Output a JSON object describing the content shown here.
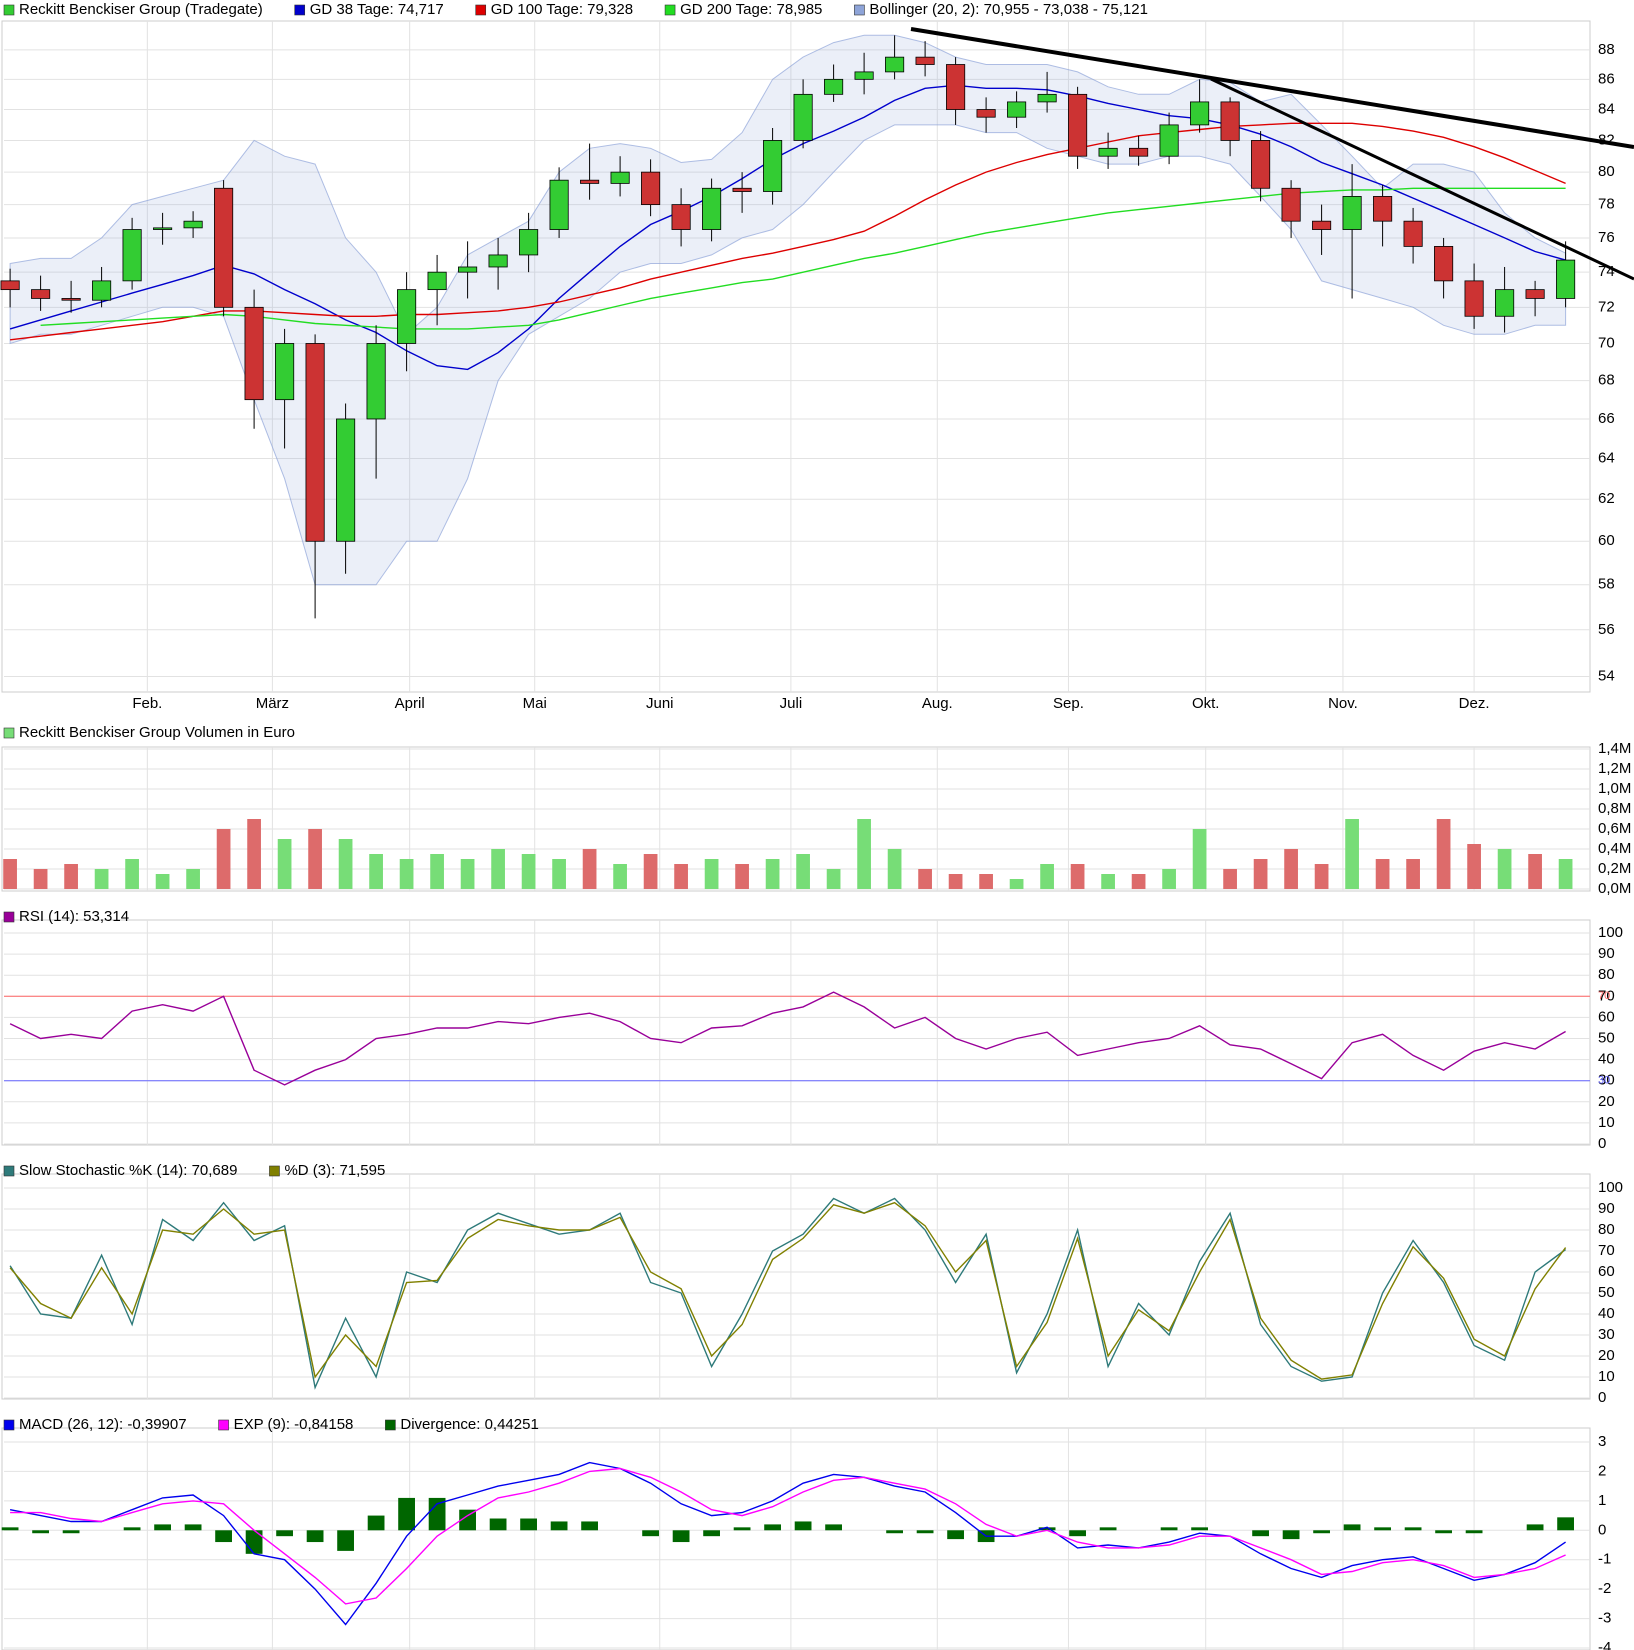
{
  "chart_data": [
    {
      "type": "candlestick",
      "log": true,
      "ylim": [
        53.35,
        90
      ],
      "yticks": [
        54,
        56,
        58,
        60,
        62,
        64,
        66,
        68,
        70,
        72,
        74,
        76,
        78,
        80,
        82,
        84,
        86,
        88
      ],
      "grid": true,
      "xlim": [
        -0.2,
        51.8
      ],
      "xticks": [
        {
          "value": 4.5,
          "label": "Feb."
        },
        {
          "value": 8.6,
          "label": "März"
        },
        {
          "value": 13.1,
          "label": "April"
        },
        {
          "value": 17.2,
          "label": "Mai"
        },
        {
          "value": 21.3,
          "label": "Juni"
        },
        {
          "value": 25.6,
          "label": "Juli"
        },
        {
          "value": 30.4,
          "label": "Aug."
        },
        {
          "value": 34.7,
          "label": "Sep."
        },
        {
          "value": 39.2,
          "label": "Okt."
        },
        {
          "value": 43.7,
          "label": "Nov."
        },
        {
          "value": 48.0,
          "label": "Dez."
        }
      ],
      "series": [
        {
          "type": "candlestick",
          "name": "Reckitt Benckiser Group (Tradegate)",
          "color": "#33cc33",
          "down_color": "#cc3333",
          "open": [
            73.5,
            73,
            72.5,
            72.4,
            73.5,
            76.5,
            76.6,
            79,
            72,
            67,
            70,
            60,
            66,
            70,
            73,
            74,
            74.3,
            75,
            76.5,
            79.5,
            79.3,
            80,
            78,
            76.5,
            79,
            78.8,
            82,
            85,
            86,
            86.5,
            87.5,
            87,
            84,
            83.5,
            84.5,
            85,
            81,
            81.5,
            81,
            83,
            84.5,
            82,
            79,
            77,
            76.5,
            78.5,
            77,
            75.5,
            73.5,
            71.5,
            73,
            72.5
          ],
          "high": [
            74.2,
            73.8,
            73.5,
            74.3,
            77.2,
            77.5,
            77.6,
            79.5,
            73,
            70.8,
            70.5,
            66.8,
            71,
            74,
            75,
            75.8,
            76,
            77.5,
            80.3,
            81.8,
            81,
            80.8,
            79,
            79.6,
            80,
            82.8,
            86,
            87,
            87.8,
            89,
            88.6,
            87.5,
            84.8,
            85.2,
            86.5,
            85.5,
            82.5,
            82.3,
            83.8,
            86,
            84.8,
            82.6,
            79.5,
            78,
            80.5,
            79.2,
            77.8,
            76,
            74.5,
            74.3,
            73.5,
            75.8
          ],
          "low": [
            72,
            71.8,
            71.7,
            72,
            73,
            75.6,
            76,
            71.5,
            65.5,
            64.5,
            56.5,
            58.5,
            63,
            68.5,
            71,
            72.5,
            73,
            74,
            76,
            78.3,
            78.5,
            77.3,
            75.5,
            75.8,
            77.5,
            78,
            81.5,
            84.5,
            85,
            86,
            86.2,
            83,
            82.5,
            82.8,
            83.8,
            80.2,
            80.2,
            80.4,
            80.5,
            82.5,
            81,
            78.2,
            76,
            75,
            72.5,
            75.5,
            74.5,
            72.5,
            70.8,
            70.6,
            71.5,
            72
          ],
          "close": [
            73,
            72.5,
            72.4,
            73.5,
            76.5,
            76.6,
            77,
            72,
            67,
            70,
            60,
            66,
            70,
            73,
            74,
            74.3,
            75,
            76.5,
            79.5,
            79.3,
            80,
            78,
            76.5,
            79,
            78.8,
            82,
            85,
            86,
            86.5,
            87.5,
            87,
            84,
            83.5,
            84.5,
            85,
            81,
            81.5,
            81,
            83,
            84.5,
            82,
            79,
            77,
            76.5,
            78.5,
            77,
            75.5,
            73.5,
            71.5,
            73,
            72.5,
            74.7
          ]
        },
        {
          "type": "line",
          "name": "GD 38 Tage: 74,717",
          "color": "#0000cc",
          "values": [
            70.8,
            71.3,
            71.8,
            72.3,
            72.8,
            73.3,
            73.8,
            74.4,
            73.9,
            73,
            72.2,
            71.3,
            70.6,
            69.6,
            68.8,
            68.6,
            69.5,
            70.8,
            72.5,
            74,
            75.5,
            76.8,
            77.6,
            78.5,
            79.6,
            80.8,
            81.8,
            82.6,
            83.5,
            84.6,
            85.4,
            85.6,
            85.4,
            85.4,
            85.3,
            84.9,
            84.4,
            84,
            83.6,
            83.4,
            83,
            82.4,
            81.6,
            80.6,
            79.9,
            79.2,
            78.4,
            77.6,
            76.8,
            76,
            75.2,
            74.7
          ]
        },
        {
          "type": "line",
          "name": "GD 100 Tage: 79,328",
          "color": "#dd0000",
          "values": [
            70.2,
            70.4,
            70.6,
            70.8,
            71,
            71.2,
            71.5,
            71.8,
            71.8,
            71.7,
            71.6,
            71.5,
            71.5,
            71.6,
            71.6,
            71.7,
            71.8,
            72,
            72.3,
            72.7,
            73.1,
            73.6,
            74,
            74.4,
            74.8,
            75.1,
            75.5,
            75.9,
            76.4,
            77.3,
            78.3,
            79.2,
            80,
            80.6,
            81.1,
            81.5,
            81.9,
            82.3,
            82.5,
            82.7,
            82.9,
            83,
            83.1,
            83.1,
            83.1,
            82.9,
            82.6,
            82.2,
            81.6,
            80.9,
            80.1,
            79.3
          ]
        },
        {
          "type": "line",
          "name": "GD 200 Tage: 78,985",
          "color": "#22dd22",
          "values": [
            null,
            71,
            71.1,
            71.2,
            71.3,
            71.4,
            71.5,
            71.6,
            71.5,
            71.3,
            71.1,
            71,
            70.9,
            70.8,
            70.8,
            70.8,
            70.9,
            71,
            71.3,
            71.7,
            72.1,
            72.5,
            72.8,
            73.1,
            73.4,
            73.6,
            74,
            74.4,
            74.8,
            75.1,
            75.5,
            75.9,
            76.3,
            76.6,
            76.9,
            77.2,
            77.5,
            77.7,
            77.9,
            78.1,
            78.3,
            78.5,
            78.7,
            78.8,
            78.9,
            78.9,
            79,
            79,
            79,
            79,
            79,
            79
          ]
        },
        {
          "type": "band",
          "name": "Bollinger (20, 2): 70,955 - 73,038 - 75,121",
          "color": "#8ea4d8",
          "upper": [
            74.5,
            74.8,
            74.8,
            76,
            78,
            78.5,
            79,
            79.5,
            82,
            81,
            80.5,
            76,
            74,
            70.5,
            72,
            75,
            76,
            77,
            80,
            81.5,
            81.8,
            81.5,
            80.6,
            80.8,
            82.5,
            86,
            87.5,
            88.5,
            89,
            89,
            88.5,
            87.5,
            87,
            87,
            87,
            86.5,
            85.5,
            85,
            85,
            86,
            85.8,
            84.5,
            85,
            83,
            81,
            79,
            80.5,
            80.5,
            80,
            77.5,
            76,
            75.1
          ],
          "lower": [
            70,
            70.5,
            70.5,
            71,
            71.5,
            72,
            72,
            71.5,
            67,
            63,
            58,
            58,
            58,
            60,
            60,
            63,
            68,
            70.5,
            71.5,
            72.5,
            74,
            74.5,
            74.5,
            75,
            76,
            76.5,
            78,
            80,
            82,
            83,
            83,
            83,
            82.5,
            82.5,
            81.5,
            81,
            80.5,
            80.5,
            81,
            81,
            80.5,
            78.5,
            76.5,
            73.5,
            73,
            72.5,
            72,
            71,
            70.5,
            70.5,
            71,
            71
          ]
        }
      ]
    },
    {
      "type": "bar",
      "ylim": [
        0,
        1.4
      ],
      "grid": true,
      "yticks": [
        {
          "value": 0,
          "label": "0,0M"
        },
        {
          "value": 0.2,
          "label": "0,2M"
        },
        {
          "value": 0.4,
          "label": "0,4M"
        },
        {
          "value": 0.6,
          "label": "0,6M"
        },
        {
          "value": 0.8,
          "label": "0,8M"
        },
        {
          "value": 1.0,
          "label": "1,0M"
        },
        {
          "value": 1.2,
          "label": "1,2M"
        },
        {
          "value": 1.4,
          "label": "1,4M"
        }
      ],
      "series": [
        {
          "type": "bar",
          "name": "Reckitt Benckiser Group Volumen in Euro",
          "color": "#77dd77",
          "down_color": "#dd6b6b",
          "values": [
            0.3,
            0.2,
            0.25,
            0.2,
            0.3,
            0.15,
            0.2,
            0.6,
            0.7,
            0.5,
            0.6,
            0.5,
            0.35,
            0.3,
            0.35,
            0.3,
            0.4,
            0.35,
            0.3,
            0.4,
            0.25,
            0.35,
            0.25,
            0.3,
            0.25,
            0.3,
            0.35,
            0.2,
            0.7,
            0.4,
            0.2,
            0.15,
            0.15,
            0.1,
            0.25,
            0.25,
            0.15,
            0.15,
            0.2,
            0.6,
            0.2,
            0.3,
            0.4,
            0.25,
            0.7,
            0.3,
            0.3,
            0.7,
            0.45,
            0.4,
            0.35,
            0.3
          ]
        }
      ]
    },
    {
      "type": "line",
      "ylim": [
        0,
        100
      ],
      "grid": true,
      "yticks": [
        0,
        10,
        20,
        30,
        40,
        50,
        60,
        70,
        80,
        90,
        100
      ],
      "levels": [
        {
          "value": 70,
          "color": "#ff6666"
        },
        {
          "value": 30,
          "color": "#6666ff"
        }
      ],
      "series": [
        {
          "type": "line",
          "name": "RSI (14): 53,314",
          "color": "#990099",
          "values": [
            57,
            50,
            52,
            50,
            63,
            66,
            63,
            70,
            35,
            28,
            35,
            40,
            50,
            52,
            55,
            55,
            58,
            57,
            60,
            62,
            58,
            50,
            48,
            55,
            56,
            62,
            65,
            72,
            65,
            55,
            60,
            50,
            45,
            50,
            53,
            42,
            45,
            48,
            50,
            56,
            47,
            45,
            38,
            31,
            48,
            52,
            42,
            35,
            44,
            48,
            45,
            53.3
          ]
        }
      ]
    },
    {
      "type": "line",
      "ylim": [
        0,
        100
      ],
      "grid": true,
      "yticks": [
        0,
        10,
        20,
        30,
        40,
        50,
        60,
        70,
        80,
        90,
        100
      ],
      "series": [
        {
          "type": "line",
          "name": "Slow Stochastic %K (14): 70,689",
          "color": "#2e7a7a",
          "values": [
            63,
            40,
            38,
            68,
            35,
            85,
            75,
            93,
            75,
            82,
            5,
            38,
            10,
            60,
            55,
            80,
            88,
            83,
            78,
            80,
            88,
            55,
            50,
            15,
            40,
            70,
            78,
            95,
            88,
            95,
            80,
            55,
            78,
            12,
            40,
            80,
            15,
            45,
            30,
            65,
            88,
            35,
            15,
            8,
            10,
            50,
            75,
            55,
            25,
            18,
            60,
            70.7
          ]
        },
        {
          "type": "line",
          "name": "%D (3): 71,595",
          "color": "#808000",
          "values": [
            62,
            45,
            38,
            62,
            40,
            80,
            78,
            90,
            78,
            80,
            10,
            30,
            15,
            55,
            56,
            76,
            85,
            82,
            80,
            80,
            86,
            60,
            52,
            20,
            35,
            66,
            76,
            92,
            88,
            93,
            82,
            60,
            75,
            15,
            36,
            76,
            20,
            42,
            32,
            60,
            85,
            38,
            18,
            9,
            11,
            45,
            72,
            57,
            28,
            20,
            52,
            71.6
          ]
        }
      ]
    },
    {
      "type": "combo",
      "ylim": [
        -4,
        3
      ],
      "grid": true,
      "yticks": [
        -4,
        -3,
        -2,
        -1,
        0,
        1,
        2,
        3
      ],
      "series": [
        {
          "type": "line",
          "name": "MACD (26, 12): -0,39907",
          "color": "#0000ee",
          "values": [
            0.7,
            0.5,
            0.3,
            0.3,
            0.7,
            1.1,
            1.2,
            0.5,
            -0.8,
            -1,
            -2,
            -3.2,
            -1.8,
            -0.2,
            0.9,
            1.2,
            1.5,
            1.7,
            1.9,
            2.3,
            2.1,
            1.6,
            0.9,
            0.5,
            0.6,
            1,
            1.6,
            1.9,
            1.8,
            1.5,
            1.3,
            0.6,
            -0.2,
            -0.2,
            0.1,
            -0.6,
            -0.5,
            -0.6,
            -0.4,
            -0.1,
            -0.2,
            -0.8,
            -1.3,
            -1.6,
            -1.2,
            -1,
            -0.9,
            -1.3,
            -1.7,
            -1.5,
            -1.1,
            -0.4
          ]
        },
        {
          "type": "line",
          "name": "EXP (9): -0,84158",
          "color": "#ff00ff",
          "values": [
            0.6,
            0.6,
            0.4,
            0.3,
            0.6,
            0.9,
            1,
            0.9,
            0,
            -0.8,
            -1.6,
            -2.5,
            -2.3,
            -1.3,
            -0.2,
            0.5,
            1.1,
            1.3,
            1.6,
            2,
            2.1,
            1.8,
            1.3,
            0.7,
            0.5,
            0.8,
            1.3,
            1.7,
            1.8,
            1.6,
            1.4,
            0.9,
            0.2,
            -0.2,
            0,
            -0.4,
            -0.6,
            -0.6,
            -0.5,
            -0.2,
            -0.2,
            -0.6,
            -1,
            -1.5,
            -1.4,
            -1.1,
            -1,
            -1.2,
            -1.6,
            -1.5,
            -1.3,
            -0.84
          ]
        },
        {
          "type": "bar",
          "name": "Divergence: 0,44251",
          "color": "#006600",
          "values": [
            0.1,
            -0.1,
            -0.1,
            0,
            0.1,
            0.2,
            0.2,
            -0.4,
            -0.8,
            -0.2,
            -0.4,
            -0.7,
            0.5,
            1.1,
            1.1,
            0.7,
            0.4,
            0.4,
            0.3,
            0.3,
            0,
            -0.2,
            -0.4,
            -0.2,
            0.1,
            0.2,
            0.3,
            0.2,
            0,
            -0.1,
            -0.1,
            -0.3,
            -0.4,
            0,
            0.1,
            -0.2,
            0.1,
            0,
            0.1,
            0.1,
            0,
            -0.2,
            -0.3,
            -0.1,
            0.2,
            0.1,
            0.1,
            -0.1,
            -0.1,
            0,
            0.2,
            0.44
          ]
        }
      ]
    }
  ]
}
